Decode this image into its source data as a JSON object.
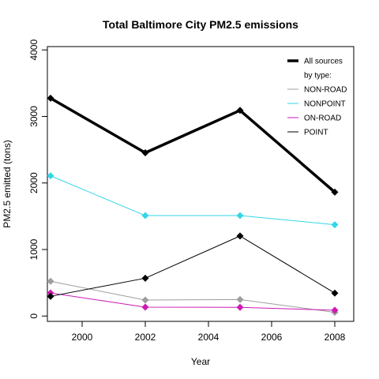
{
  "chart_data": {
    "type": "line",
    "title": "Total Baltimore City PM2.5 emissions",
    "xlabel": "Year",
    "ylabel": "PM2.5 emitted (tons)",
    "x": [
      1999,
      2002,
      2005,
      2008
    ],
    "xlim": [
      1998.9,
      2008.6
    ],
    "ylim": [
      -80,
      4050
    ],
    "x_ticks": [
      2000,
      2002,
      2004,
      2006,
      2008
    ],
    "y_ticks": [
      0,
      1000,
      2000,
      3000,
      4000
    ],
    "grid": false,
    "legend_position": "top-right",
    "legend_subheading": "by type:",
    "series": [
      {
        "name": "All sources",
        "color": "#000000",
        "width": 3.5,
        "values": [
          3274,
          2454,
          3091,
          1862
        ]
      },
      {
        "name": "NON-ROAD",
        "color": "#9e9e9e",
        "width": 1,
        "values": [
          522,
          241,
          248,
          55
        ]
      },
      {
        "name": "NONPOINT",
        "color": "#33d6e6",
        "width": 1,
        "values": [
          2108,
          1510,
          1510,
          1373
        ]
      },
      {
        "name": "ON-ROAD",
        "color": "#cc1ab3",
        "width": 1,
        "values": [
          347,
          134,
          130,
          88
        ]
      },
      {
        "name": "POINT",
        "color": "#000000",
        "width": 1,
        "values": [
          296,
          569,
          1203,
          345
        ]
      }
    ]
  }
}
